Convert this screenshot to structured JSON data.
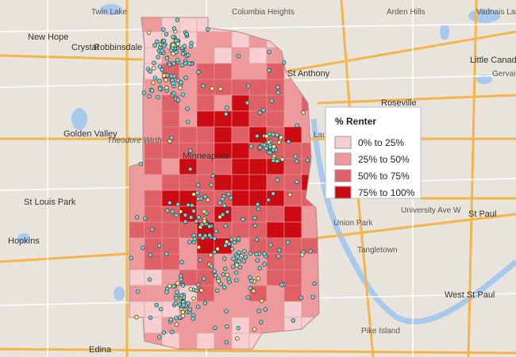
{
  "legend": {
    "title": "% Renter",
    "items": [
      {
        "label": "0% to 25%",
        "color": "#f7cfd0"
      },
      {
        "label": "25% to 50%",
        "color": "#ee9a9d"
      },
      {
        "label": "50% to 75%",
        "color": "#de5f66"
      },
      {
        "label": "75% to 100%",
        "color": "#cc0a12"
      }
    ]
  },
  "places": [
    "Twin Lake",
    "Columbia Heights",
    "Arden Hills",
    "Vadnais Lake",
    "New Hope",
    "Crystal",
    "Robbinsdale",
    "St Anthony",
    "Little Canada",
    "Gervais",
    "Roseville",
    "Golden Valley",
    "Theodore Wirth",
    "Minneapolis",
    "St Louis Park",
    "Hopkins",
    "Edina",
    "St Paul",
    "West St Paul",
    "University Ave W",
    "Tangletown",
    "Pike Island",
    "Union Park",
    "Lauderdale"
  ]
}
